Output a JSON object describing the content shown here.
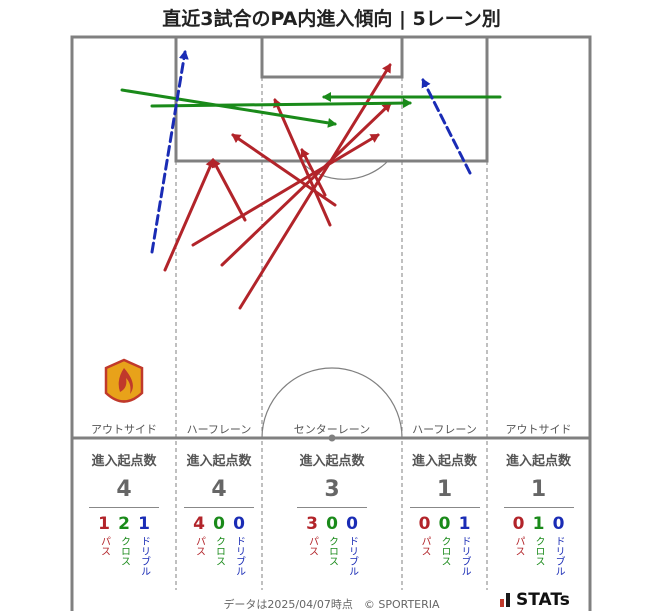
{
  "title": "直近3試合のPA内進入傾向 | 5レーン別",
  "colors": {
    "pass": "#b2242a",
    "cross": "#1a8a1a",
    "dribble": "#1a2cb5",
    "pitch_line": "#808080"
  },
  "lanes": [
    {
      "label": "アウトサイド",
      "head": "進入起点数",
      "total": "4",
      "pass": "1",
      "cross": "2",
      "dribble": "1"
    },
    {
      "label": "ハーフレーン",
      "head": "進入起点数",
      "total": "4",
      "pass": "4",
      "cross": "0",
      "dribble": "0"
    },
    {
      "label": "センターレーン",
      "head": "進入起点数",
      "total": "3",
      "pass": "3",
      "cross": "0",
      "dribble": "0"
    },
    {
      "label": "ハーフレーン",
      "head": "進入起点数",
      "total": "1",
      "pass": "0",
      "cross": "0",
      "dribble": "1"
    },
    {
      "label": "アウトサイド",
      "head": "進入起点数",
      "total": "1",
      "pass": "0",
      "cross": "1",
      "dribble": "0"
    }
  ],
  "legend": {
    "pass": "パス",
    "cross": "クロス",
    "dribble": "ドリブル"
  },
  "arrows": [
    {
      "type": "pass",
      "from": "LH-mid",
      "to": "PA-left-edge"
    },
    {
      "type": "pass",
      "from": "LH-deep",
      "to": "PA-left-edge"
    },
    {
      "type": "pass",
      "from": "LH-left",
      "to": "PA-center-right"
    },
    {
      "type": "pass",
      "from": "C-deep",
      "to": "PA-right"
    },
    {
      "type": "pass",
      "from": "C-mid",
      "to": "PA-right"
    },
    {
      "type": "pass",
      "from": "C-right",
      "to": "PA-center"
    },
    {
      "type": "pass",
      "from": "C-right2",
      "to": "PA-center-left"
    },
    {
      "type": "pass",
      "from": "C-right3",
      "to": "PA-left"
    },
    {
      "type": "cross",
      "from": "L-out",
      "to": "PA-center"
    },
    {
      "type": "cross",
      "from": "R-out",
      "to": "PA-center"
    },
    {
      "type": "cross",
      "from": "L-out2",
      "to": "PA-right"
    },
    {
      "type": "dribble",
      "from": "L-out",
      "to": "PA-left"
    },
    {
      "type": "dribble",
      "from": "RH",
      "to": "PA-right"
    }
  ],
  "footer": "データは2025/04/07時点　© SPORTERIA",
  "brand": "STATs"
}
